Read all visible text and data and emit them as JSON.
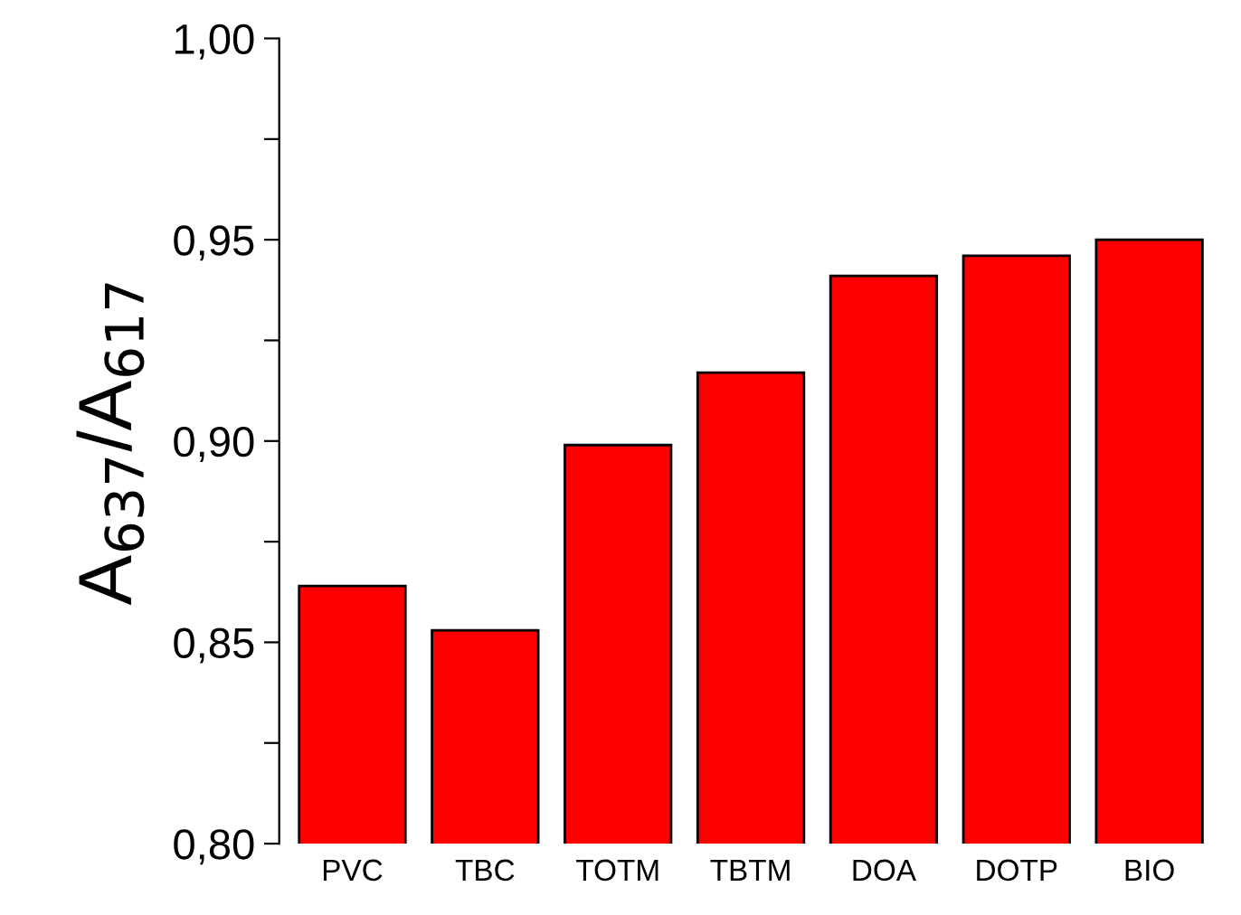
{
  "chart_data": {
    "type": "bar",
    "ylabel": "A$_{637}$/A$_{617}$",
    "categories": [
      "PVC",
      "TBC",
      "TOTM",
      "TBTM",
      "DOA",
      "DOTP",
      "BIO"
    ],
    "values": [
      0.864,
      0.853,
      0.899,
      0.917,
      0.941,
      0.946,
      0.95
    ],
    "color": "#ff0000",
    "ylim": [
      0.8,
      1.0
    ],
    "yticks": [
      {
        "value": 0.8,
        "label": "0,80"
      },
      {
        "value": 0.825,
        "label": null
      },
      {
        "value": 0.85,
        "label": "0,85"
      },
      {
        "value": 0.875,
        "label": null
      },
      {
        "value": 0.9,
        "label": "0,90"
      },
      {
        "value": 0.925,
        "label": null
      },
      {
        "value": 0.95,
        "label": "0,95"
      },
      {
        "value": 0.975,
        "label": null
      },
      {
        "value": 1.0,
        "label": "1,00"
      }
    ],
    "grid": false
  }
}
